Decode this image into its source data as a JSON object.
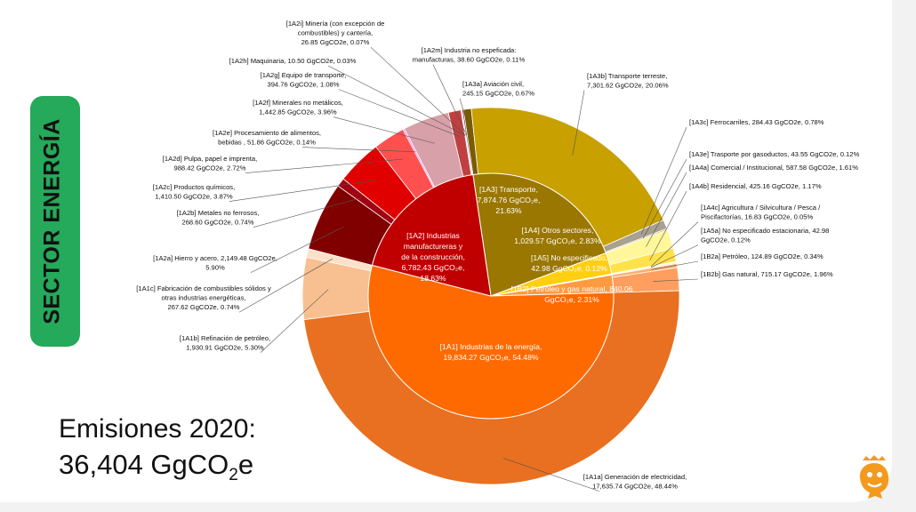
{
  "side_tab": "SECTOR ENERGÍA",
  "summary": {
    "label": "Emisiones 2020:",
    "value_main": "36,404 GgCO",
    "value_sub": "2",
    "value_tail": "e"
  },
  "chart_data": {
    "type": "sunburst",
    "title": "Emisiones 2020: 36,404 GgCO2e",
    "unit": "GgCO2e",
    "total": 36404,
    "inner": [
      {
        "id": "1A3",
        "lines": [
          "[1A3] Transporte,",
          "7,874.76 GgCO₂e,",
          "21.63%"
        ],
        "value": 7874.76,
        "pct": 21.63,
        "color": "#9a7700"
      },
      {
        "id": "1A4",
        "lines": [
          "[1A4] Otros sectores,",
          "1,029.57 GgCO₂e, 2.83%"
        ],
        "value": 1029.57,
        "pct": 2.83,
        "color": "#ffcf10"
      },
      {
        "id": "1A5",
        "lines": [
          "[1A5] No especificado,",
          "42.98 GgCO₂e, 0.12%"
        ],
        "value": 42.98,
        "pct": 0.12,
        "color": "#ffe680"
      },
      {
        "id": "1B2",
        "lines": [
          "[1B2] Petróleo y gas natural, 840.06",
          "GgCO₂e, 2.31%"
        ],
        "value": 840.06,
        "pct": 2.31,
        "color": "#ff9a40"
      },
      {
        "id": "1A1",
        "lines": [
          "[1A1] Industrias de la energía,",
          "19,834.27 GgCO₂e, 54.48%"
        ],
        "value": 19834.27,
        "pct": 54.48,
        "color": "#ff6a00"
      },
      {
        "id": "1A2",
        "lines": [
          "[1A2] Industrias",
          "manufactureras y",
          "de la construcción,",
          "6,782.43 GgCO₂e,",
          "18.63%"
        ],
        "value": 6782.43,
        "pct": 18.63,
        "color": "#c00000"
      }
    ],
    "outer": [
      {
        "id": "1A3a",
        "lines": [
          "[1A3a] Aviación civil,",
          "245.15 GgCO2e, 0.67%"
        ],
        "value": 245.15,
        "pct": 0.67,
        "color": "#7a5c00"
      },
      {
        "id": "1A3b",
        "lines": [
          "[1A3b] Transporte terreste,",
          "7,301.62 GgCO2e, 20.06%"
        ],
        "value": 7301.62,
        "pct": 20.06,
        "color": "#c8a000"
      },
      {
        "id": "1A3c",
        "lines": [
          "[1A3c] Ferrocarriles, 284.43 GgCO2e, 0.78%"
        ],
        "value": 284.43,
        "pct": 0.78,
        "color": "#a8a090"
      },
      {
        "id": "1A3e",
        "lines": [
          "[1A3e] Trasporte por gasoductos, 43.55 GgCO2e, 0.12%"
        ],
        "value": 43.55,
        "pct": 0.12,
        "color": "#c9b860"
      },
      {
        "id": "1A4a",
        "lines": [
          "[1A4a] Comercial / Institucional, 587.58 GgCO2e, 1.61%"
        ],
        "value": 587.58,
        "pct": 1.61,
        "color": "#fff79a"
      },
      {
        "id": "1A4b",
        "lines": [
          "[1A4b] Residencial, 425.16 GgCO2e, 1.17%"
        ],
        "value": 425.16,
        "pct": 1.17,
        "color": "#ffe24a"
      },
      {
        "id": "1A4c",
        "lines": [
          "[1A4c] Agricultura / Silvicultura / Pesca /",
          "Piscifactorías, 16.83 GgCO2e, 0.05%"
        ],
        "value": 16.83,
        "pct": 0.05,
        "color": "#e8c800"
      },
      {
        "id": "1A5a",
        "lines": [
          "[1A5a] No especificado estacionaria, 42.98",
          "GgCO2e, 0.12%"
        ],
        "value": 42.98,
        "pct": 0.12,
        "color": "#ffeeaa"
      },
      {
        "id": "1B2a",
        "lines": [
          "[1B2a] Petróleo, 124.89 GgCO2e, 0.34%"
        ],
        "value": 124.89,
        "pct": 0.34,
        "color": "#ffb070"
      },
      {
        "id": "1B2b",
        "lines": [
          "[1B2b] Gas natural, 715.17 GgCO2e, 1.96%"
        ],
        "value": 715.17,
        "pct": 1.96,
        "color": "#ff9e5e"
      },
      {
        "id": "1A1a",
        "lines": [
          "[1A1a] Generación de electricidad,",
          "17,635.74 GgCO2e, 48.44%"
        ],
        "value": 17635.74,
        "pct": 48.44,
        "color": "#e87020"
      },
      {
        "id": "1A1b",
        "lines": [
          "[1A1b] Refinación de petróleo,",
          "1,930.91 GgCO2e, 5.30%"
        ],
        "value": 1930.91,
        "pct": 5.3,
        "color": "#f8c090"
      },
      {
        "id": "1A1c",
        "lines": [
          "[1A1c] Fabricación de combustibles sólidos y",
          "otras industrias energéticas,",
          "267.62 GgCO2e, 0.74%"
        ],
        "value": 267.62,
        "pct": 0.74,
        "color": "#fde0c8"
      },
      {
        "id": "1A2a",
        "lines": [
          "[1A2a] Hierro y acero, 2,149.48 GgCO2e,",
          "5.90%"
        ],
        "value": 2149.48,
        "pct": 5.9,
        "color": "#800000"
      },
      {
        "id": "1A2b",
        "lines": [
          "[1A2b] Metales no ferrosos,",
          "268.60 GgCO2e, 0.74%"
        ],
        "value": 268.6,
        "pct": 0.74,
        "color": "#a00010"
      },
      {
        "id": "1A2c",
        "lines": [
          "[1A2c] Productos químicos,",
          "1,410.50 GgCO2e, 3.87%"
        ],
        "value": 1410.5,
        "pct": 3.87,
        "color": "#e00000"
      },
      {
        "id": "1A2d",
        "lines": [
          "[1A2d] Pulpa, papel e imprenta,",
          "988.42 GgCO2e, 2.72%"
        ],
        "value": 988.42,
        "pct": 2.72,
        "color": "#ff5050"
      },
      {
        "id": "1A2e",
        "lines": [
          "[1A2e] Procesamiento de alimentos,",
          "bebidas , 51.86 GgCO2e, 0.14%"
        ],
        "value": 51.86,
        "pct": 0.14,
        "color": "#ff80ff"
      },
      {
        "id": "1A2f",
        "lines": [
          "[1A2f] Minerales no metálicos,",
          "1,442.85 GgCO2e, 3.96%"
        ],
        "value": 1442.85,
        "pct": 3.96,
        "color": "#d8a0a8"
      },
      {
        "id": "1A2g",
        "lines": [
          "[1A2g] Equipo de transporte,",
          "394.76 GgCO2e, 1.08%"
        ],
        "value": 394.76,
        "pct": 1.08,
        "color": "#c04040"
      },
      {
        "id": "1A2h",
        "lines": [
          "[1A2h] Maquinaria, 10.50 GgCO2e, 0.03%"
        ],
        "value": 10.5,
        "pct": 0.03,
        "color": "#a03030"
      },
      {
        "id": "1A2i",
        "lines": [
          "[1A2i] Minería (con excepción de",
          "combustibles) y cantería,",
          "26.85 GgCO2e, 0.07%"
        ],
        "value": 26.85,
        "pct": 0.07,
        "color": "#902020"
      },
      {
        "id": "1A2m",
        "lines": [
          "[1A2m] Industria no espeficada:",
          "manufacturas, 38.60 GgCO2e, 0.11%"
        ],
        "value": 38.6,
        "pct": 0.11,
        "color": "#600000"
      }
    ]
  }
}
